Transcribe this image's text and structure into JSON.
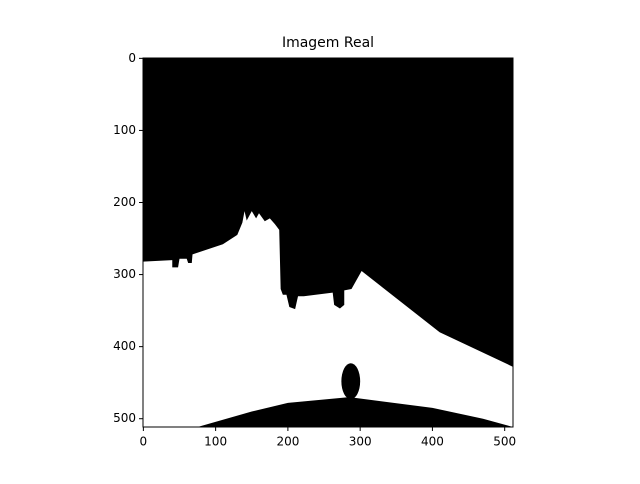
{
  "chart_data": {
    "type": "image",
    "title": "Imagem Real",
    "xlim": [
      -0.5,
      511.5
    ],
    "ylim": [
      511.5,
      -0.5
    ],
    "xticks": [
      0,
      100,
      200,
      300,
      400,
      500
    ],
    "yticks": [
      0,
      100,
      200,
      300,
      400,
      500
    ]
  }
}
